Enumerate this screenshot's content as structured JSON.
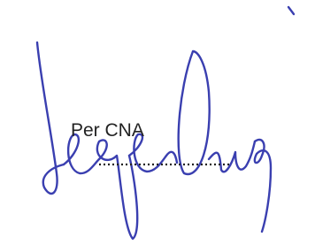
{
  "text": "Per CNA"
}
